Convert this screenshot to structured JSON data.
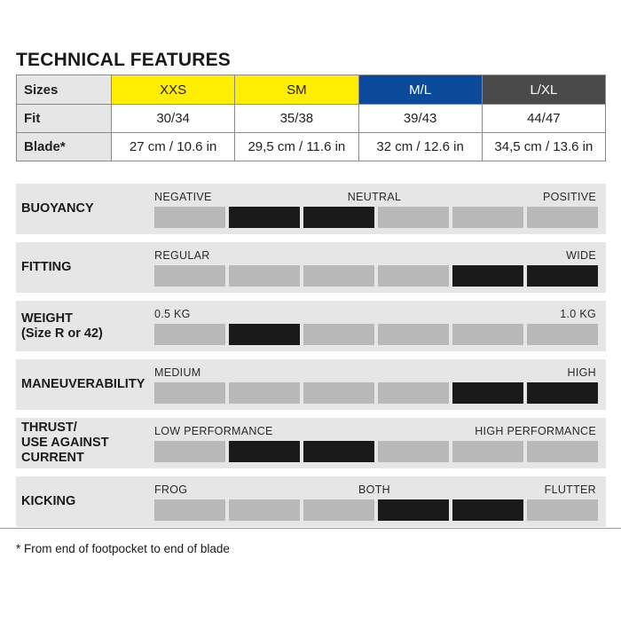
{
  "title": "TECHNICAL FEATURES",
  "sizes_table": {
    "header_label": "Sizes",
    "columns": [
      {
        "label": "XXS",
        "bg": "#ffee00",
        "fg": "#222222"
      },
      {
        "label": "SM",
        "bg": "#ffee00",
        "fg": "#222222"
      },
      {
        "label": "M/L",
        "bg": "#0b4a9a",
        "fg": "#ffffff"
      },
      {
        "label": "L/XL",
        "bg": "#4a4a4a",
        "fg": "#ffffff"
      }
    ],
    "rows": [
      {
        "label": "Fit",
        "values": [
          "30/34",
          "35/38",
          "39/43",
          "44/47"
        ]
      },
      {
        "label": "Blade*",
        "values": [
          "27 cm / 10.6 in",
          "29,5 cm / 11.6 in",
          "32 cm / 12.6 in",
          "34,5 cm / 13.6 in"
        ]
      }
    ]
  },
  "features": [
    {
      "name": "BUOYANCY",
      "labels": {
        "left": "NEGATIVE",
        "center": "NEUTRAL",
        "right": "POSITIVE"
      },
      "segments": [
        0,
        1,
        1,
        0,
        0,
        0
      ]
    },
    {
      "name": "FITTING",
      "labels": {
        "left": "REGULAR",
        "center": "",
        "right": "WIDE"
      },
      "segments": [
        0,
        0,
        0,
        0,
        1,
        1
      ]
    },
    {
      "name": "WEIGHT\n(Size R or 42)",
      "labels": {
        "left": "0.5 KG",
        "center": "",
        "right": "1.0 KG"
      },
      "segments": [
        0,
        1,
        0,
        0,
        0,
        0
      ]
    },
    {
      "name": "MANEUVERABILITY",
      "labels": {
        "left": "MEDIUM",
        "center": "",
        "right": "HIGH"
      },
      "segments": [
        0,
        0,
        0,
        0,
        1,
        1
      ]
    },
    {
      "name": "THRUST/\nUSE AGAINST\nCURRENT",
      "labels": {
        "left": "LOW PERFORMANCE",
        "center": "",
        "right": "HIGH PERFORMANCE"
      },
      "segments": [
        0,
        1,
        1,
        0,
        0,
        0
      ]
    },
    {
      "name": "KICKING",
      "labels": {
        "left": "FROG",
        "center": "BOTH",
        "right": "FLUTTER"
      },
      "segments": [
        0,
        0,
        0,
        1,
        1,
        0
      ]
    }
  ],
  "colors": {
    "segment_on": "#1a1a1a",
    "segment_off": "#b8b8b8",
    "panel_bg": "#e6e6e6"
  },
  "footnote": "* From end of footpocket to end of blade"
}
